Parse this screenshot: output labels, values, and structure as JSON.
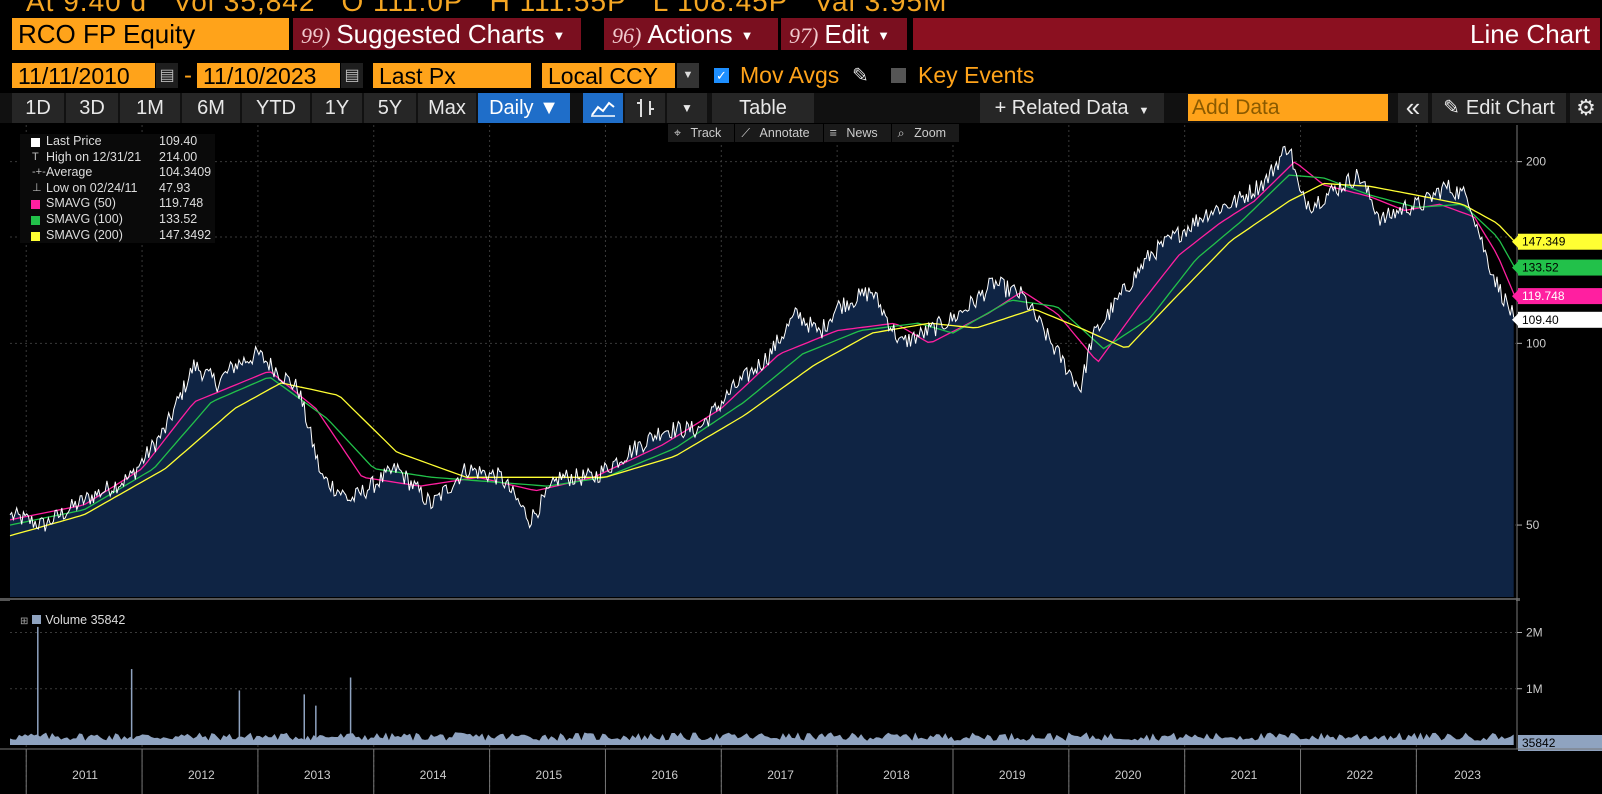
{
  "ticker_strip": {
    "items": [
      "At 9.40 d",
      "Vol 35,842",
      "O 111.0P",
      "H 111.55P",
      "L 108.45P",
      "Val 3.95M"
    ]
  },
  "header": {
    "security": "RCO FP Equity",
    "suggested_charts": {
      "num": "99)",
      "label": "Suggested Charts"
    },
    "actions": {
      "num": "96)",
      "label": "Actions"
    },
    "edit": {
      "num": "97)",
      "label": "Edit"
    },
    "title": "Line Chart"
  },
  "controls": {
    "start_date": "11/11/2010",
    "end_date": "11/10/2023",
    "dash": "-",
    "field": "Last Px",
    "currency": "Local CCY",
    "mov_avgs_label": "Mov Avgs",
    "mov_avgs_checked": true,
    "key_events_label": "Key Events",
    "key_events_checked": false
  },
  "toolbar": {
    "periods": [
      "1D",
      "3D",
      "1M",
      "6M",
      "YTD",
      "1Y",
      "5Y",
      "Max"
    ],
    "frequency": "Daily ▼",
    "table": "Table",
    "related_data": "+ Related Data",
    "add_data_placeholder": "Add Data",
    "collapse": "«",
    "edit_chart": "Edit Chart"
  },
  "chart_tools": [
    "Track",
    "Annotate",
    "News",
    "Zoom"
  ],
  "legend": [
    {
      "label": "Last Price",
      "value": "109.40",
      "color": "#ffffff"
    },
    {
      "label": "High on 12/31/21",
      "value": "214.00",
      "marker": "T"
    },
    {
      "label": "Average",
      "value": "104.3409",
      "marker": "-+-"
    },
    {
      "label": "Low on 02/24/11",
      "value": "47.93",
      "marker": "⊥"
    },
    {
      "label": "SMAVG (50)",
      "value": "119.748",
      "color": "#ff1fa0"
    },
    {
      "label": "SMAVG (100)",
      "value": "133.52",
      "color": "#22c14a"
    },
    {
      "label": "SMAVG (200)",
      "value": "147.3492",
      "color": "#ffff33"
    }
  ],
  "price_axis": {
    "ticks": [
      "200",
      "100",
      "50"
    ],
    "tags": [
      {
        "text": "147.349",
        "bg": "#ffff33",
        "fg": "#000000"
      },
      {
        "text": "133.52",
        "bg": "#22c14a",
        "fg": "#000000"
      },
      {
        "text": "119.748",
        "bg": "#ff1fa0",
        "fg": "#ffffff"
      },
      {
        "text": "109.40",
        "bg": "#ffffff",
        "fg": "#000000"
      }
    ]
  },
  "volume": {
    "label": "Volume",
    "value": "35842",
    "ticks": [
      "2M",
      "1M"
    ],
    "tag": "35842"
  },
  "chart_data": {
    "type": "line",
    "scale": "log",
    "ylim": [
      38,
      230
    ],
    "x_axis_labels": [
      "2011",
      "2012",
      "2013",
      "2014",
      "2015",
      "2016",
      "2017",
      "2018",
      "2019",
      "2020",
      "2021",
      "2022",
      "2023"
    ],
    "series": [
      {
        "name": "Last Price",
        "color": "#ffffff",
        "x": [
          2010.86,
          2011.15,
          2011.5,
          2011.9,
          2012.2,
          2012.45,
          2012.65,
          2012.8,
          2013.0,
          2013.35,
          2013.55,
          2013.8,
          2014.2,
          2014.5,
          2014.8,
          2015.1,
          2015.35,
          2015.6,
          2015.9,
          2016.2,
          2016.5,
          2016.8,
          2017.1,
          2017.4,
          2017.65,
          2017.85,
          2018.0,
          2018.3,
          2018.55,
          2018.75,
          2019.0,
          2019.2,
          2019.35,
          2019.6,
          2019.85,
          2020.1,
          2020.2,
          2020.45,
          2020.7,
          2020.95,
          2021.2,
          2021.45,
          2021.7,
          2021.9,
          2022.0,
          2022.1,
          2022.3,
          2022.5,
          2022.7,
          2022.9,
          2023.05,
          2023.25,
          2023.45,
          2023.6,
          2023.7,
          2023.85
        ],
        "values": [
          52,
          50,
          55,
          60,
          72,
          92,
          86,
          92,
          96,
          84,
          60,
          55,
          62,
          54,
          62,
          60,
          51,
          60,
          60,
          66,
          72,
          72,
          84,
          95,
          112,
          104,
          115,
          122,
          100,
          104,
          110,
          118,
          126,
          120,
          100,
          84,
          102,
          120,
          140,
          152,
          165,
          172,
          186,
          214,
          175,
          170,
          180,
          190,
          160,
          168,
          170,
          182,
          175,
          140,
          125,
          109.4
        ]
      },
      {
        "name": "SMAVG (50)",
        "color": "#ff1fa0",
        "x": [
          2010.86,
          2011.5,
          2012.0,
          2012.45,
          2012.85,
          2013.1,
          2013.5,
          2013.9,
          2014.4,
          2014.9,
          2015.4,
          2015.9,
          2016.5,
          2017.0,
          2017.5,
          2018.0,
          2018.5,
          2018.8,
          2019.3,
          2019.6,
          2019.9,
          2020.25,
          2020.6,
          2020.95,
          2021.3,
          2021.6,
          2021.95,
          2022.2,
          2022.6,
          2022.9,
          2023.2,
          2023.5,
          2023.7,
          2023.85
        ],
        "values": [
          51,
          54,
          62,
          80,
          86,
          90,
          78,
          60,
          58,
          60,
          57,
          60,
          68,
          78,
          96,
          105,
          108,
          100,
          112,
          122,
          112,
          93,
          115,
          140,
          158,
          172,
          200,
          183,
          175,
          166,
          170,
          162,
          140,
          119.75
        ]
      },
      {
        "name": "SMAVG (100)",
        "color": "#22c14a",
        "x": [
          2010.86,
          2011.5,
          2012.1,
          2012.6,
          2013.1,
          2013.6,
          2014.0,
          2014.5,
          2015.0,
          2015.5,
          2016.0,
          2016.6,
          2017.2,
          2017.7,
          2018.2,
          2018.7,
          2019.0,
          2019.5,
          2019.9,
          2020.3,
          2020.7,
          2021.1,
          2021.5,
          2021.9,
          2022.2,
          2022.6,
          2023.0,
          2023.4,
          2023.7,
          2023.85
        ],
        "values": [
          50,
          53,
          62,
          80,
          88,
          75,
          62,
          60,
          59,
          58,
          60,
          67,
          80,
          96,
          105,
          108,
          104,
          118,
          115,
          98,
          110,
          138,
          160,
          190,
          188,
          176,
          168,
          170,
          150,
          133.52
        ]
      },
      {
        "name": "SMAVG (200)",
        "color": "#ffff33",
        "x": [
          2010.86,
          2011.5,
          2012.2,
          2012.8,
          2013.2,
          2013.7,
          2014.2,
          2014.8,
          2015.4,
          2016.0,
          2016.6,
          2017.2,
          2017.8,
          2018.3,
          2018.8,
          2019.2,
          2019.7,
          2020.1,
          2020.5,
          2020.9,
          2021.4,
          2021.9,
          2022.2,
          2022.6,
          2023.0,
          2023.4,
          2023.7,
          2023.85
        ],
        "values": [
          48,
          52,
          62,
          78,
          86,
          82,
          66,
          60,
          60,
          60,
          65,
          76,
          92,
          104,
          108,
          106,
          114,
          106,
          98,
          118,
          148,
          172,
          184,
          182,
          176,
          170,
          158,
          147.35
        ]
      }
    ],
    "volume_series": {
      "name": "Volume",
      "ylim": [
        0,
        2400000
      ],
      "spikes": [
        {
          "x": 2011.1,
          "value": 2100000
        },
        {
          "x": 2011.91,
          "value": 1350000
        },
        {
          "x": 2012.84,
          "value": 970000
        },
        {
          "x": 2013.4,
          "value": 900000
        },
        {
          "x": 2013.8,
          "value": 1200000
        },
        {
          "x": 2013.5,
          "value": 700000
        }
      ],
      "baseline": 150000,
      "last": 35842
    }
  }
}
